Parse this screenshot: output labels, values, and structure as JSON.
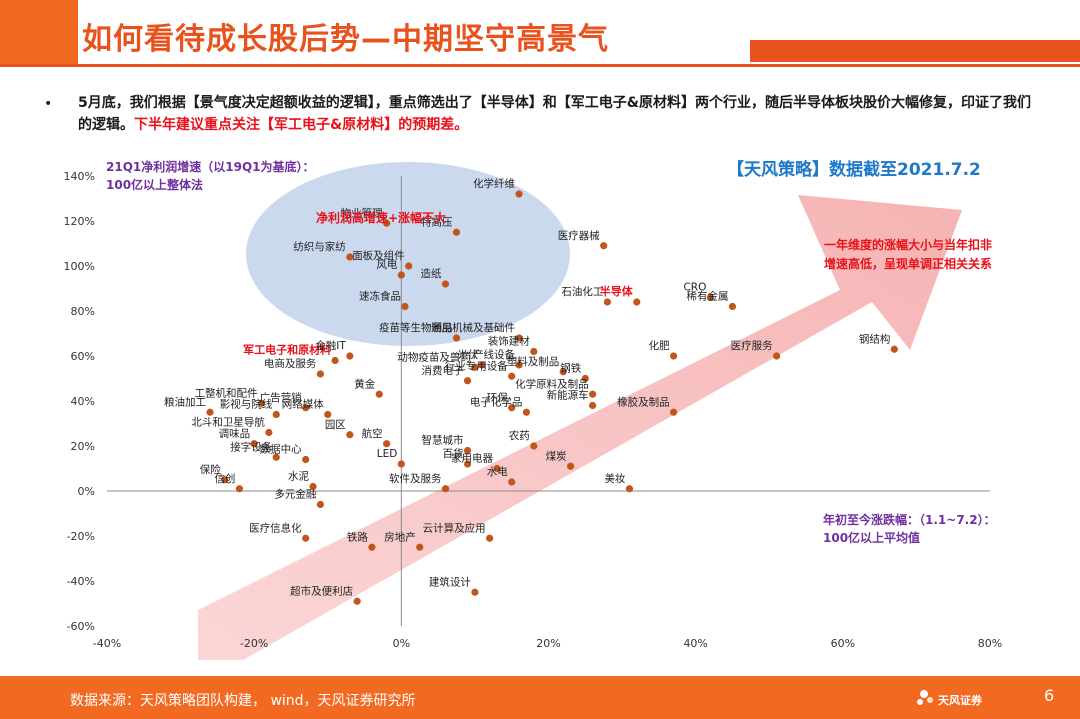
{
  "header": {
    "title": "如何看待成长股后势—中期坚守高景气"
  },
  "intro": {
    "bullet": "•",
    "text_black": "5月底，我们根据【景气度决定超额收益的逻辑】，重点筛选出了【半导体】和【军工电子&原材料】两个行业，随后半导体板块股价大幅修复，印证了我们的逻辑。",
    "text_red": "下半年建议重点关注【军工电子&原材料】的预期差。"
  },
  "annotations": {
    "y_axis_note_line1": "21Q1净利润增速（以19Q1为基底）：",
    "y_axis_note_line2": "100亿以上整体法",
    "source_tag": "【天风策略】数据截至2021.7.2",
    "ellipse_label": "净利润高增速+涨幅不大",
    "arrow_note_line1": "一年维度的涨幅大小与当年扣非",
    "arrow_note_line2": "增速高低，呈现单调正相关关系",
    "x_axis_note_line1": "年初至今涨跌幅：（1.1~7.2）：",
    "x_axis_note_line2": "100亿以上平均值"
  },
  "colors": {
    "accent": "#E8521C",
    "dot": "#C0561B",
    "highlight_red": "#E8121A",
    "note_purple": "#7030A0",
    "tag_blue": "#1F78C8",
    "ellipse": "#B9CCE8",
    "arrow": "#F5A3A3"
  },
  "chart_data": {
    "type": "scatter",
    "xlabel": "",
    "ylabel": "",
    "xlim": [
      -40,
      80
    ],
    "ylim": [
      -60,
      140
    ],
    "x_ticks": [
      "-40%",
      "-20%",
      "0%",
      "20%",
      "40%",
      "60%",
      "80%"
    ],
    "y_ticks": [
      "140%",
      "120%",
      "100%",
      "80%",
      "60%",
      "40%",
      "20%",
      "0%",
      "-20%",
      "-40%",
      "-60%"
    ],
    "points": [
      {
        "label": "化学纤维",
        "x": 16,
        "y": 132,
        "highlight": false
      },
      {
        "label": "医疗器械",
        "x": 27.5,
        "y": 109,
        "highlight": false
      },
      {
        "label": "特高压",
        "x": 7.5,
        "y": 115,
        "highlight": false
      },
      {
        "label": "纺织与家纺",
        "x": -7,
        "y": 104,
        "highlight": false
      },
      {
        "label": "物业管理",
        "x": -2,
        "y": 119,
        "highlight": false
      },
      {
        "label": "面板及组件",
        "x": 1,
        "y": 100,
        "highlight": false
      },
      {
        "label": "风电",
        "x": 0,
        "y": 96,
        "highlight": false
      },
      {
        "label": "造纸",
        "x": 6,
        "y": 92,
        "highlight": false
      },
      {
        "label": "速冻食品",
        "x": 0.5,
        "y": 82,
        "highlight": false
      },
      {
        "label": "CRO",
        "x": 42,
        "y": 86,
        "highlight": false
      },
      {
        "label": "稀有金属",
        "x": 45,
        "y": 82,
        "highlight": false
      },
      {
        "label": "半导体",
        "x": 32,
        "y": 84,
        "highlight": true
      },
      {
        "label": "石油化工",
        "x": 28,
        "y": 84,
        "highlight": false
      },
      {
        "label": "疫苗等生物制品",
        "x": 7.5,
        "y": 68,
        "highlight": false
      },
      {
        "label": "通用机械及基础件",
        "x": 16,
        "y": 68,
        "highlight": false
      },
      {
        "label": "装饰建材",
        "x": 18,
        "y": 62,
        "highlight": false
      },
      {
        "label": "钢结构",
        "x": 67,
        "y": 63,
        "highlight": false
      },
      {
        "label": "医疗服务",
        "x": 51,
        "y": 60,
        "highlight": false
      },
      {
        "label": "化肥",
        "x": 37,
        "y": 60,
        "highlight": false
      },
      {
        "label": "军工电子和原材料",
        "x": -9,
        "y": 58,
        "highlight": true
      },
      {
        "label": "金融IT",
        "x": -7,
        "y": 60,
        "highlight": false
      },
      {
        "label": "光伏",
        "x": 11,
        "y": 56,
        "highlight": false
      },
      {
        "label": "产线设备",
        "x": 16,
        "y": 56,
        "highlight": false
      },
      {
        "label": "动物疫苗及兽药",
        "x": 10,
        "y": 55,
        "highlight": false
      },
      {
        "label": "塑料及制品",
        "x": 22,
        "y": 53,
        "highlight": false
      },
      {
        "label": "行业专用设备",
        "x": 15,
        "y": 51,
        "highlight": false
      },
      {
        "label": "电商及服务",
        "x": -11,
        "y": 52,
        "highlight": false
      },
      {
        "label": "黄金",
        "x": -3,
        "y": 43,
        "highlight": false
      },
      {
        "label": "钢铁",
        "x": 25,
        "y": 50,
        "highlight": false
      },
      {
        "label": "消费电子",
        "x": 9,
        "y": 49,
        "highlight": false
      },
      {
        "label": "化学原料及制品",
        "x": 26,
        "y": 43,
        "highlight": false
      },
      {
        "label": "新能源车",
        "x": 26,
        "y": 38,
        "highlight": false
      },
      {
        "label": "橡胶及制品",
        "x": 37,
        "y": 35,
        "highlight": false
      },
      {
        "label": "粮油加工",
        "x": -26,
        "y": 35,
        "highlight": false
      },
      {
        "label": "工整机和配件",
        "x": -19,
        "y": 39,
        "highlight": false
      },
      {
        "label": "广告营销",
        "x": -13,
        "y": 37,
        "highlight": false
      },
      {
        "label": "影视与院线",
        "x": -17,
        "y": 34,
        "highlight": false
      },
      {
        "label": "网络媒体",
        "x": -10,
        "y": 34,
        "highlight": false
      },
      {
        "label": "环保",
        "x": 15,
        "y": 37,
        "highlight": false
      },
      {
        "label": "电子化学品",
        "x": 17,
        "y": 35,
        "highlight": false
      },
      {
        "label": "北斗和卫星导航",
        "x": -18,
        "y": 26,
        "highlight": false
      },
      {
        "label": "调味品",
        "x": -20,
        "y": 21,
        "highlight": false
      },
      {
        "label": "园区",
        "x": -7,
        "y": 25,
        "highlight": false
      },
      {
        "label": "航空",
        "x": -2,
        "y": 21,
        "highlight": false
      },
      {
        "label": "智慧城市",
        "x": 9,
        "y": 18,
        "highlight": false
      },
      {
        "label": "农药",
        "x": 18,
        "y": 20,
        "highlight": false
      },
      {
        "label": "煤炭",
        "x": 23,
        "y": 11,
        "highlight": false
      },
      {
        "label": "接字设备",
        "x": -17,
        "y": 15,
        "highlight": false
      },
      {
        "label": "数据中心",
        "x": -13,
        "y": 14,
        "highlight": false
      },
      {
        "label": "LED",
        "x": 0,
        "y": 12,
        "highlight": false
      },
      {
        "label": "百货",
        "x": 9,
        "y": 12,
        "highlight": false
      },
      {
        "label": "家用电器",
        "x": 13,
        "y": 10,
        "highlight": false
      },
      {
        "label": "美妆",
        "x": 31,
        "y": 1,
        "highlight": false
      },
      {
        "label": "水电",
        "x": 15,
        "y": 4,
        "highlight": false
      },
      {
        "label": "保险",
        "x": -24,
        "y": 5,
        "highlight": false
      },
      {
        "label": "信创",
        "x": -22,
        "y": 1,
        "highlight": false
      },
      {
        "label": "水泥",
        "x": -12,
        "y": 2,
        "highlight": false
      },
      {
        "label": "软件及服务",
        "x": 6,
        "y": 1,
        "highlight": false
      },
      {
        "label": "多元金融",
        "x": -11,
        "y": -6,
        "highlight": false
      },
      {
        "label": "医疗信息化",
        "x": -13,
        "y": -21,
        "highlight": false
      },
      {
        "label": "铁路",
        "x": -4,
        "y": -25,
        "highlight": false
      },
      {
        "label": "房地产",
        "x": 2.5,
        "y": -25,
        "highlight": false
      },
      {
        "label": "云计算及应用",
        "x": 12,
        "y": -21,
        "highlight": false
      },
      {
        "label": "建筑设计",
        "x": 10,
        "y": -45,
        "highlight": false
      },
      {
        "label": "超市及便利店",
        "x": -6,
        "y": -49,
        "highlight": false
      }
    ]
  }
}
